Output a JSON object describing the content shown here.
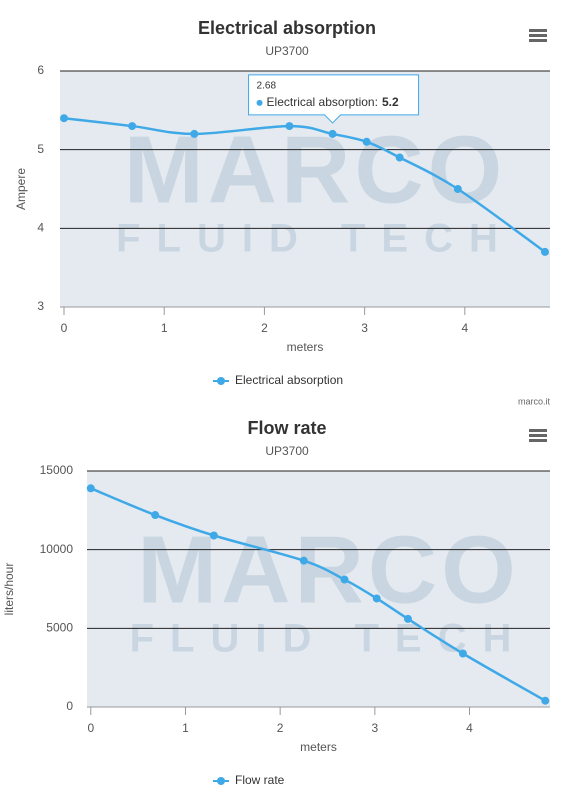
{
  "chart_data": [
    {
      "type": "line",
      "title": "Electrical absorption",
      "subtitle": "UP3700",
      "x_label": "meters",
      "y_label": "Ampere",
      "x": [
        0,
        0.68,
        1.3,
        2.25,
        2.68,
        3.02,
        3.35,
        3.93,
        4.8
      ],
      "series": [
        {
          "name": "Electrical absorption",
          "color": "#3fa9e8",
          "values": [
            5.4,
            5.3,
            5.2,
            5.3,
            5.2,
            5.1,
            4.9,
            4.5,
            3.7
          ]
        }
      ],
      "xlim": [
        -0.04,
        4.85
      ],
      "ylim": [
        3,
        6
      ],
      "xticks": [
        0,
        1,
        2,
        3,
        4
      ],
      "yticks": [
        3,
        4,
        5,
        6
      ],
      "grid": true,
      "watermark": [
        "MARCO",
        "FLUID TECH"
      ],
      "tooltip": {
        "x": 2.68,
        "label": "Electrical absorption:",
        "value": 5.2
      },
      "credits": "marco.it"
    },
    {
      "type": "line",
      "title": "Flow rate",
      "subtitle": "UP3700",
      "x_label": "meters",
      "y_label": "liters/hour",
      "x": [
        0,
        0.68,
        1.3,
        2.25,
        2.68,
        3.02,
        3.35,
        3.93,
        4.8
      ],
      "series": [
        {
          "name": "Flow rate",
          "color": "#3fa9e8",
          "values": [
            13900,
            12200,
            10900,
            9300,
            8100,
            6900,
            5600,
            3400,
            400
          ]
        }
      ],
      "xlim": [
        -0.04,
        4.85
      ],
      "ylim": [
        0,
        15000
      ],
      "xticks": [
        0,
        1,
        2,
        3,
        4
      ],
      "yticks": [
        0,
        5000,
        10000,
        15000
      ],
      "grid": true,
      "watermark": [
        "MARCO",
        "FLUID TECH"
      ]
    }
  ]
}
